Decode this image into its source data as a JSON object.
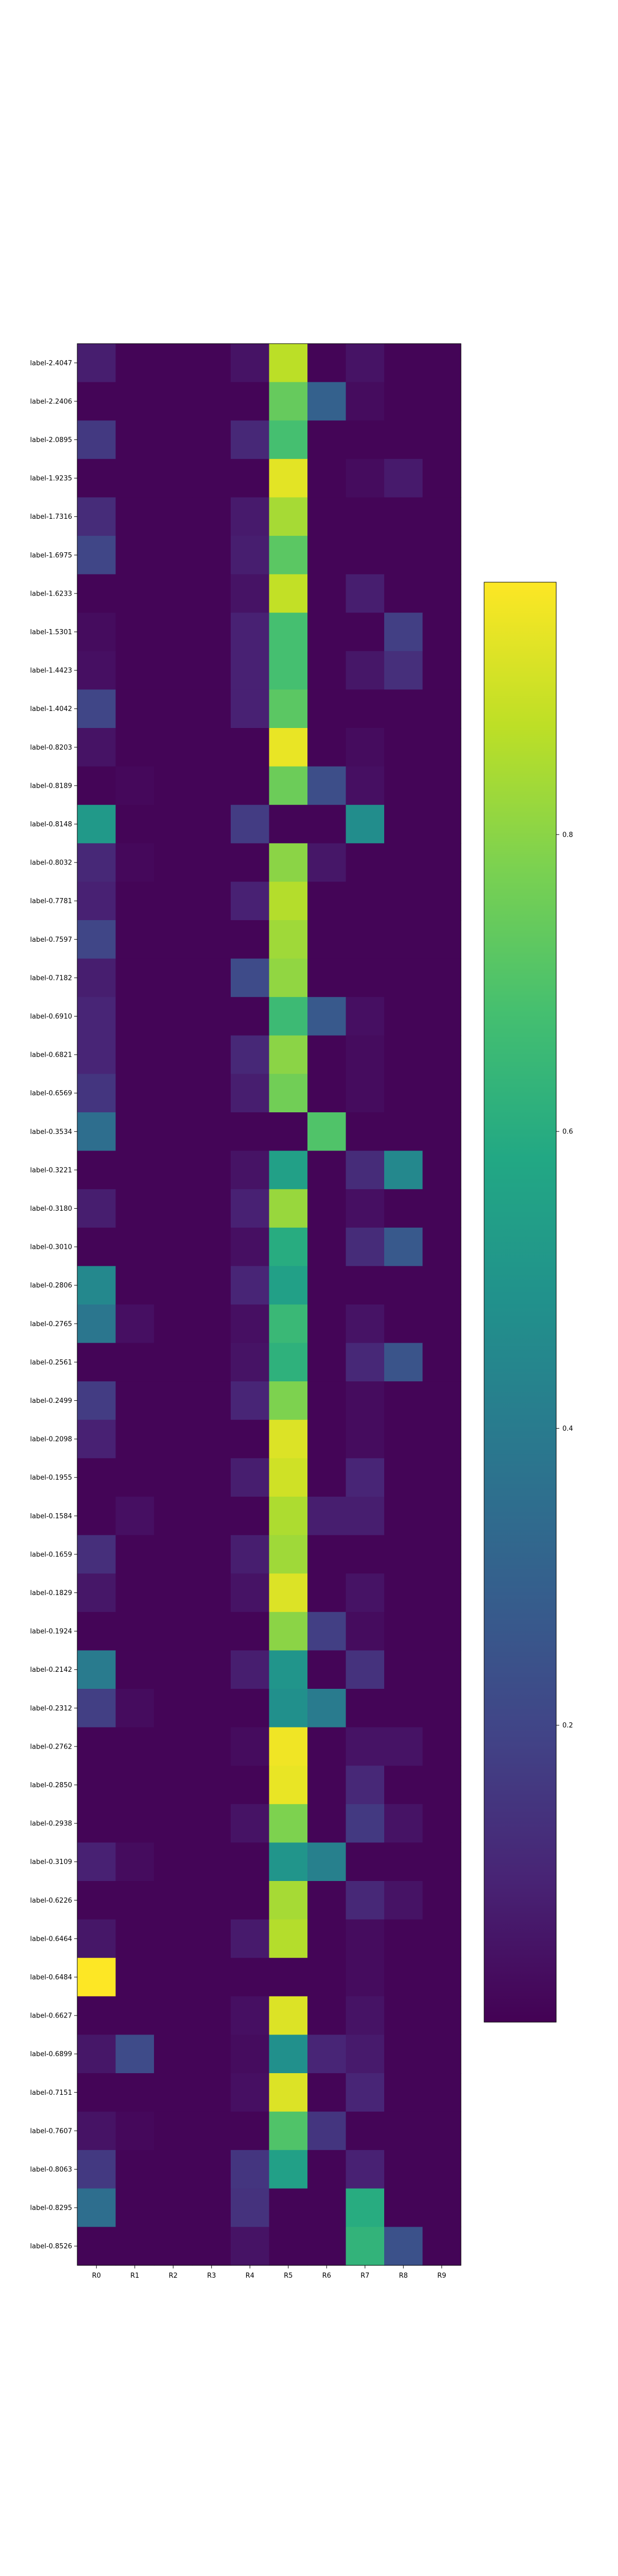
{
  "chart_data": {
    "type": "heatmap",
    "title": "",
    "xlabel": "",
    "ylabel": "",
    "x_categories": [
      "R0",
      "R1",
      "R2",
      "R3",
      "R4",
      "R5",
      "R6",
      "R7",
      "R8",
      "R9"
    ],
    "y_categories": [
      "label-2.4047",
      "label-2.2406",
      "label-2.0895",
      "label-1.9235",
      "label-1.7316",
      "label-1.6975",
      "label-1.6233",
      "label-1.5301",
      "label-1.4423",
      "label-1.4042",
      "label-0.8203",
      "label-0.8189",
      "label-0.8148",
      "label-0.8032",
      "label-0.7781",
      "label-0.7597",
      "label-0.7182",
      "label-0.6910",
      "label-0.6821",
      "label-0.6569",
      "label-0.3534",
      "label-0.3221",
      "label-0.3180",
      "label-0.3010",
      "label-0.2806",
      "label-0.2765",
      "label-0.2561",
      "label-0.2499",
      "label-0.2098",
      "label-0.1955",
      "label-0.1584",
      "label-0.1659",
      "label-0.1829",
      "label-0.1924",
      "label-0.2142",
      "label-0.2312",
      "label-0.2762",
      "label-0.2850",
      "label-0.2938",
      "label-0.3109",
      "label-0.6226",
      "label-0.6464",
      "label-0.6484",
      "label-0.6627",
      "label-0.6899",
      "label-0.7151",
      "label-0.7607",
      "label-0.8063",
      "label-0.8295",
      "label-0.8526"
    ],
    "values": [
      [
        0.08,
        0.01,
        0.01,
        0.01,
        0.05,
        0.87,
        0.01,
        0.05,
        0.01,
        0.01
      ],
      [
        0.01,
        0.01,
        0.01,
        0.01,
        0.01,
        0.74,
        0.3,
        0.03,
        0.01,
        0.01
      ],
      [
        0.16,
        0.01,
        0.01,
        0.01,
        0.11,
        0.68,
        0.01,
        0.01,
        0.01,
        0.01
      ],
      [
        0.01,
        0.01,
        0.01,
        0.01,
        0.01,
        0.93,
        0.01,
        0.03,
        0.07,
        0.01
      ],
      [
        0.12,
        0.01,
        0.01,
        0.01,
        0.07,
        0.84,
        0.01,
        0.01,
        0.01,
        0.01
      ],
      [
        0.2,
        0.01,
        0.01,
        0.01,
        0.08,
        0.72,
        0.01,
        0.01,
        0.01,
        0.01
      ],
      [
        0.01,
        0.01,
        0.01,
        0.01,
        0.05,
        0.88,
        0.01,
        0.08,
        0.01,
        0.01
      ],
      [
        0.03,
        0.01,
        0.01,
        0.01,
        0.09,
        0.68,
        0.01,
        0.01,
        0.18,
        0.01
      ],
      [
        0.04,
        0.01,
        0.01,
        0.01,
        0.09,
        0.68,
        0.01,
        0.06,
        0.13,
        0.01
      ],
      [
        0.2,
        0.01,
        0.01,
        0.01,
        0.09,
        0.72,
        0.01,
        0.01,
        0.01,
        0.01
      ],
      [
        0.05,
        0.01,
        0.01,
        0.01,
        0.01,
        0.94,
        0.01,
        0.03,
        0.01,
        0.01
      ],
      [
        0.01,
        0.02,
        0.01,
        0.01,
        0.01,
        0.75,
        0.23,
        0.04,
        0.01,
        0.01
      ],
      [
        0.52,
        0.01,
        0.01,
        0.01,
        0.17,
        0.01,
        0.01,
        0.47,
        0.01,
        0.01
      ],
      [
        0.11,
        0.02,
        0.01,
        0.01,
        0.01,
        0.8,
        0.06,
        0.01,
        0.01,
        0.01
      ],
      [
        0.09,
        0.01,
        0.01,
        0.01,
        0.09,
        0.86,
        0.01,
        0.01,
        0.01,
        0.01
      ],
      [
        0.2,
        0.01,
        0.01,
        0.01,
        0.01,
        0.83,
        0.01,
        0.01,
        0.01,
        0.01
      ],
      [
        0.08,
        0.01,
        0.01,
        0.01,
        0.22,
        0.81,
        0.01,
        0.01,
        0.01,
        0.01
      ],
      [
        0.1,
        0.01,
        0.01,
        0.01,
        0.01,
        0.66,
        0.27,
        0.04,
        0.01,
        0.01
      ],
      [
        0.1,
        0.01,
        0.01,
        0.01,
        0.11,
        0.8,
        0.01,
        0.03,
        0.01,
        0.01
      ],
      [
        0.15,
        0.01,
        0.01,
        0.01,
        0.08,
        0.76,
        0.01,
        0.03,
        0.01,
        0.01
      ],
      [
        0.35,
        0.01,
        0.01,
        0.01,
        0.01,
        0.01,
        0.7,
        0.01,
        0.01,
        0.01
      ],
      [
        0.01,
        0.01,
        0.01,
        0.01,
        0.05,
        0.55,
        0.01,
        0.12,
        0.45,
        0.01
      ],
      [
        0.08,
        0.01,
        0.01,
        0.01,
        0.09,
        0.82,
        0.01,
        0.04,
        0.01,
        0.01
      ],
      [
        0.01,
        0.01,
        0.01,
        0.01,
        0.04,
        0.6,
        0.01,
        0.12,
        0.27,
        0.01
      ],
      [
        0.45,
        0.01,
        0.01,
        0.01,
        0.1,
        0.55,
        0.01,
        0.01,
        0.01,
        0.01
      ],
      [
        0.38,
        0.04,
        0.01,
        0.01,
        0.04,
        0.65,
        0.01,
        0.05,
        0.01,
        0.01
      ],
      [
        0.01,
        0.01,
        0.01,
        0.01,
        0.05,
        0.62,
        0.01,
        0.11,
        0.25,
        0.01
      ],
      [
        0.17,
        0.01,
        0.01,
        0.01,
        0.1,
        0.78,
        0.01,
        0.03,
        0.01,
        0.01
      ],
      [
        0.09,
        0.01,
        0.01,
        0.01,
        0.01,
        0.92,
        0.01,
        0.03,
        0.01,
        0.01
      ],
      [
        0.01,
        0.01,
        0.01,
        0.01,
        0.08,
        0.9,
        0.01,
        0.1,
        0.01,
        0.01
      ],
      [
        0.01,
        0.04,
        0.01,
        0.01,
        0.01,
        0.85,
        0.08,
        0.08,
        0.01,
        0.01
      ],
      [
        0.13,
        0.01,
        0.01,
        0.01,
        0.08,
        0.83,
        0.01,
        0.01,
        0.01,
        0.01
      ],
      [
        0.06,
        0.01,
        0.01,
        0.01,
        0.05,
        0.92,
        0.01,
        0.05,
        0.01,
        0.01
      ],
      [
        0.01,
        0.01,
        0.01,
        0.01,
        0.01,
        0.8,
        0.18,
        0.03,
        0.01,
        0.01
      ],
      [
        0.4,
        0.01,
        0.01,
        0.01,
        0.08,
        0.5,
        0.01,
        0.14,
        0.01,
        0.01
      ],
      [
        0.18,
        0.03,
        0.01,
        0.01,
        0.01,
        0.48,
        0.4,
        0.01,
        0.01,
        0.01
      ],
      [
        0.01,
        0.01,
        0.01,
        0.01,
        0.03,
        0.95,
        0.01,
        0.05,
        0.05,
        0.01
      ],
      [
        0.01,
        0.01,
        0.01,
        0.01,
        0.01,
        0.94,
        0.01,
        0.11,
        0.01,
        0.01
      ],
      [
        0.01,
        0.01,
        0.01,
        0.01,
        0.05,
        0.78,
        0.01,
        0.16,
        0.05,
        0.01
      ],
      [
        0.09,
        0.03,
        0.01,
        0.01,
        0.01,
        0.5,
        0.42,
        0.01,
        0.01,
        0.01
      ],
      [
        0.01,
        0.01,
        0.01,
        0.01,
        0.01,
        0.84,
        0.01,
        0.11,
        0.05,
        0.01
      ],
      [
        0.06,
        0.01,
        0.01,
        0.01,
        0.07,
        0.86,
        0.01,
        0.03,
        0.01,
        0.01
      ],
      [
        0.97,
        0.01,
        0.01,
        0.01,
        0.01,
        0.01,
        0.01,
        0.03,
        0.01,
        0.01
      ],
      [
        0.01,
        0.01,
        0.01,
        0.01,
        0.04,
        0.92,
        0.01,
        0.05,
        0.01,
        0.01
      ],
      [
        0.06,
        0.22,
        0.01,
        0.01,
        0.03,
        0.48,
        0.1,
        0.07,
        0.01,
        0.01
      ],
      [
        0.01,
        0.01,
        0.01,
        0.01,
        0.04,
        0.92,
        0.01,
        0.1,
        0.01,
        0.01
      ],
      [
        0.05,
        0.02,
        0.01,
        0.01,
        0.01,
        0.7,
        0.15,
        0.01,
        0.01,
        0.01
      ],
      [
        0.16,
        0.01,
        0.01,
        0.01,
        0.15,
        0.55,
        0.01,
        0.09,
        0.01,
        0.01
      ],
      [
        0.35,
        0.01,
        0.01,
        0.01,
        0.14,
        0.01,
        0.01,
        0.6,
        0.01,
        0.01
      ],
      [
        0.01,
        0.01,
        0.01,
        0.01,
        0.05,
        0.01,
        0.01,
        0.63,
        0.24,
        0.01
      ]
    ],
    "vmin": 0.0,
    "vmax": 1.0,
    "colormap": "viridis",
    "colorbar": {
      "ticks": [
        0.2,
        0.4,
        0.6,
        0.8
      ],
      "tick_labels": [
        "0.2",
        "0.4",
        "0.6",
        "0.8"
      ],
      "range": [
        0.0,
        0.97
      ]
    },
    "grid": false,
    "legend": "none"
  }
}
